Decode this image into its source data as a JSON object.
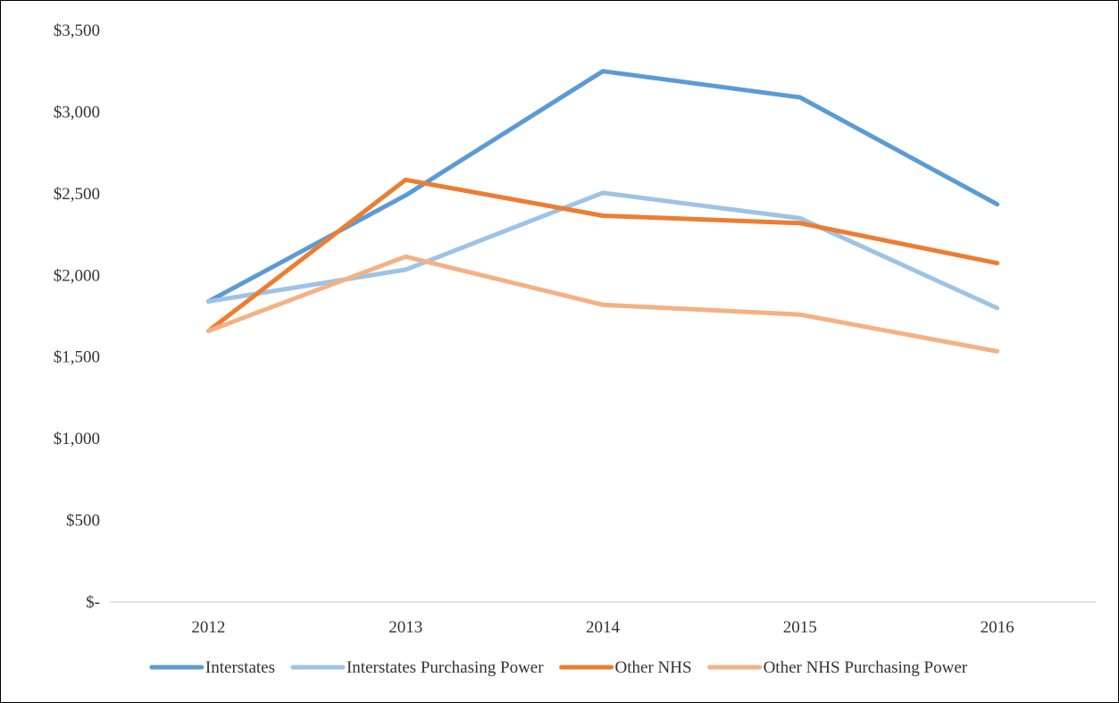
{
  "chart_data": {
    "type": "line",
    "title": "",
    "xlabel": "",
    "ylabel": "",
    "categories": [
      "2012",
      "2013",
      "2014",
      "2015",
      "2016"
    ],
    "y_ticks": [
      0,
      500,
      1000,
      1500,
      2000,
      2500,
      3000,
      3500
    ],
    "y_tick_labels": [
      "$-",
      "$500",
      "$1,000",
      "$1,500",
      "$2,000",
      "$2,500",
      "$3,000",
      "$3,500"
    ],
    "ylim": [
      0,
      3500
    ],
    "grid": false,
    "legend_position": "bottom",
    "series": [
      {
        "name": "Interstates",
        "color": "#5b9bd5",
        "values": [
          1840,
          2490,
          3250,
          3090,
          2435
        ]
      },
      {
        "name": "Interstates Purchasing Power",
        "color": "#9dc3e6",
        "values": [
          1840,
          2035,
          2505,
          2350,
          1800
        ]
      },
      {
        "name": "Other NHS",
        "color": "#ed7d31",
        "values": [
          1660,
          2585,
          2365,
          2320,
          2075
        ]
      },
      {
        "name": "Other NHS Purchasing Power",
        "color": "#f4b183",
        "values": [
          1660,
          2115,
          1820,
          1760,
          1535
        ]
      }
    ]
  }
}
